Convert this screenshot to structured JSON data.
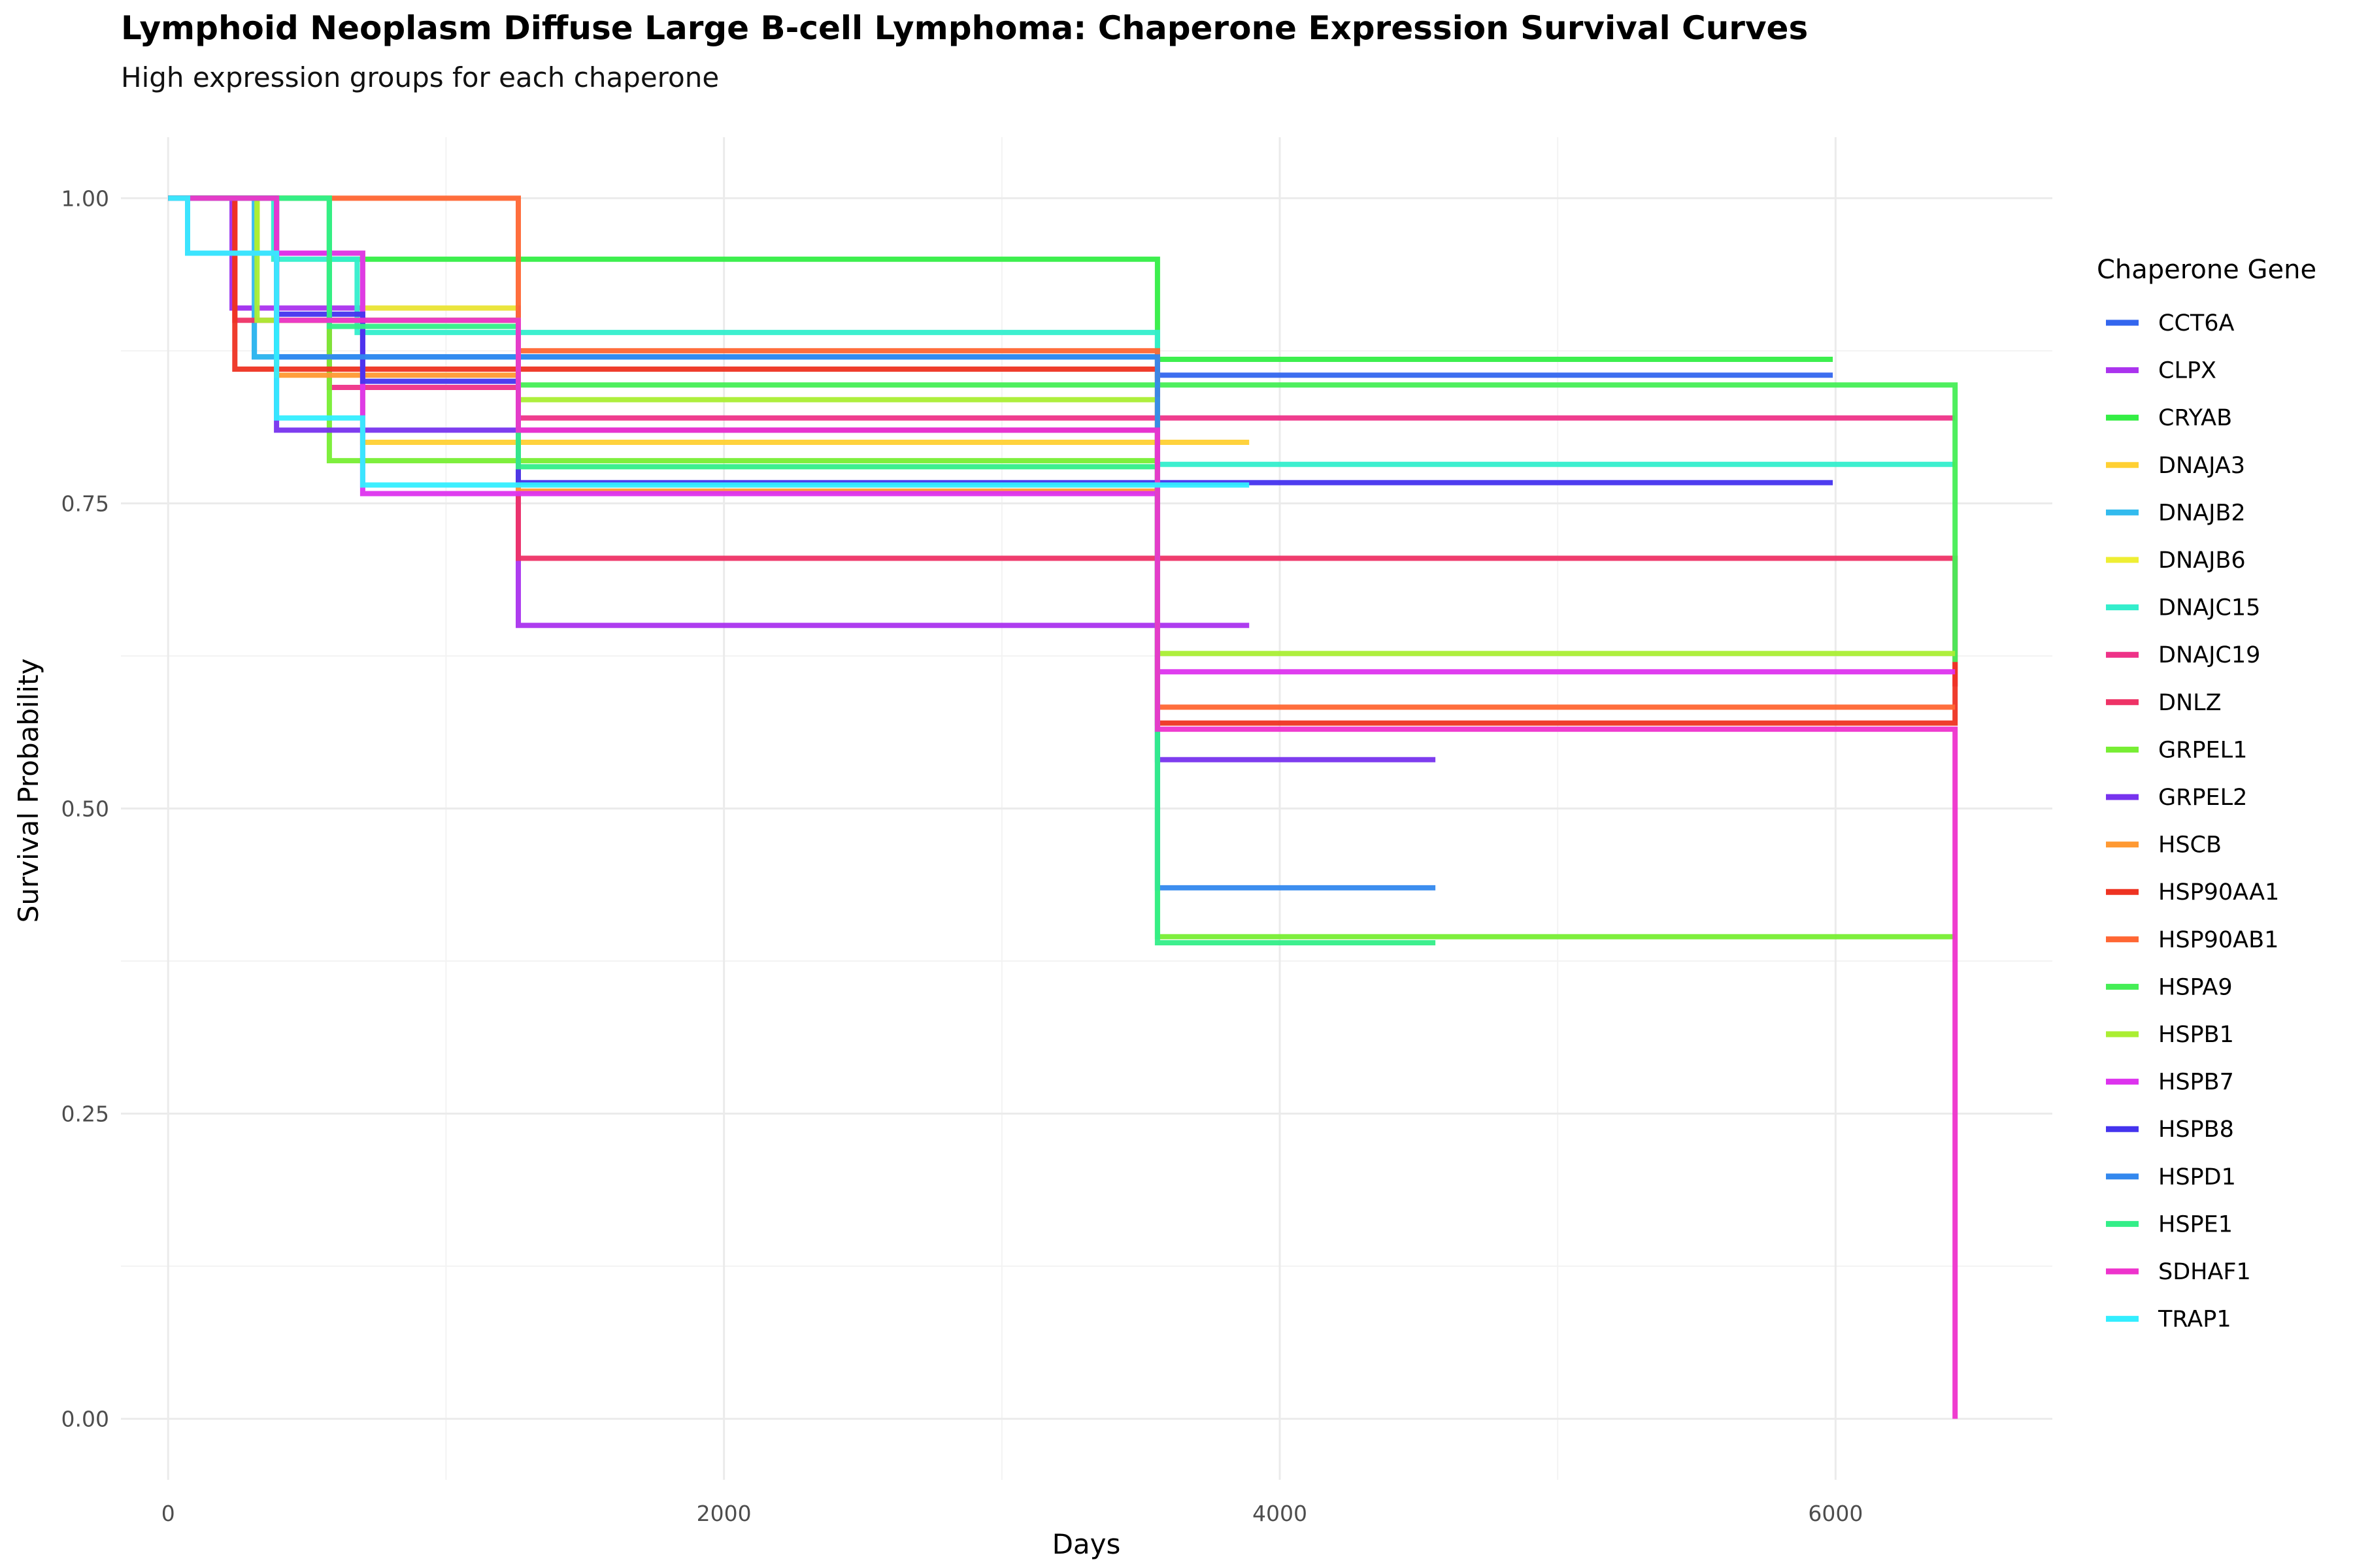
{
  "chart_data": {
    "type": "line",
    "title": "Lymphoid Neoplasm Diffuse Large B-cell Lymphoma: Chaperone Expression Survival Curves",
    "subtitle": "High expression groups for each chaperone",
    "xlabel": "Days",
    "ylabel": "Survival Probability",
    "legend_title": "Chaperone Gene",
    "legend_position": "right",
    "xlim": [
      -170,
      6780
    ],
    "ylim": [
      -0.05,
      1.05
    ],
    "x_ticks": [
      0,
      2000,
      4000,
      6000
    ],
    "x_tick_labels": [
      "0",
      "2000",
      "4000",
      "6000"
    ],
    "y_ticks": [
      0,
      0.25,
      0.5,
      0.75,
      1
    ],
    "y_tick_labels": [
      "0.00",
      "0.25",
      "0.50",
      "0.75",
      "1.00"
    ],
    "grid": true,
    "series": [
      {
        "name": "CCT6A",
        "color": "#3366ee",
        "x": [
          0,
          230,
          310,
          3560,
          5990
        ],
        "y": [
          1,
          0.91,
          0.87,
          0.855,
          0.855
        ]
      },
      {
        "name": "CLPX",
        "color": "#aa33ee",
        "x": [
          0,
          230,
          1260,
          3890
        ],
        "y": [
          1,
          0.91,
          0.65,
          0.65
        ]
      },
      {
        "name": "CRYAB",
        "color": "#33ee44",
        "x": [
          0,
          580,
          3560,
          5990
        ],
        "y": [
          1,
          0.95,
          0.868,
          0.868
        ]
      },
      {
        "name": "DNAJA3",
        "color": "#ffd033",
        "x": [
          0,
          320,
          700,
          1260,
          3890
        ],
        "y": [
          1,
          0.955,
          0.8,
          0.8,
          0.8
        ]
      },
      {
        "name": "DNAJB2",
        "color": "#33bbee",
        "x": [
          0,
          310,
          3560
        ],
        "y": [
          1,
          0.87,
          0.87
        ]
      },
      {
        "name": "DNAJB6",
        "color": "#eeee33",
        "x": [
          0,
          320,
          700,
          1260
        ],
        "y": [
          1,
          0.955,
          0.91,
          0.91
        ]
      },
      {
        "name": "DNAJC15",
        "color": "#33eecc",
        "x": [
          0,
          380,
          680,
          3560,
          6430
        ],
        "y": [
          1,
          0.95,
          0.89,
          0.782,
          0.782
        ]
      },
      {
        "name": "DNAJC19",
        "color": "#ee3388",
        "x": [
          0,
          70,
          580,
          1260,
          6430
        ],
        "y": [
          1,
          0.955,
          0.845,
          0.82,
          0.82
        ]
      },
      {
        "name": "DNLZ",
        "color": "#ee3366",
        "x": [
          0,
          240,
          1260,
          6430,
          6430
        ],
        "y": [
          1,
          0.9,
          0.705,
          0.705,
          0.6
        ]
      },
      {
        "name": "GRPEL1",
        "color": "#77ee33",
        "x": [
          0,
          580,
          3560,
          6430
        ],
        "y": [
          1,
          0.785,
          0.395,
          0.395
        ]
      },
      {
        "name": "GRPEL2",
        "color": "#7733ee",
        "x": [
          0,
          390,
          3560,
          4560
        ],
        "y": [
          1,
          0.81,
          0.54,
          0.54
        ]
      },
      {
        "name": "HSCB",
        "color": "#ff9933",
        "x": [
          0,
          390,
          1260,
          3560
        ],
        "y": [
          1,
          0.855,
          0.76,
          0.76
        ]
      },
      {
        "name": "HSP90AA1",
        "color": "#ee3322",
        "x": [
          0,
          240,
          3560,
          6430,
          6430
        ],
        "y": [
          1,
          0.86,
          0.57,
          0.57,
          0.62
        ]
      },
      {
        "name": "HSP90AB1",
        "color": "#ff6633",
        "x": [
          0,
          1260,
          3560,
          6430
        ],
        "y": [
          1,
          0.875,
          0.583,
          0.583
        ]
      },
      {
        "name": "HSPA9",
        "color": "#44ee55",
        "x": [
          0,
          580,
          1260,
          3560,
          6430,
          6430
        ],
        "y": [
          1,
          0.9,
          0.847,
          0.847,
          0.847,
          0.62
        ]
      },
      {
        "name": "HSPB1",
        "color": "#aaee33",
        "x": [
          0,
          320,
          1260,
          3560,
          6430
        ],
        "y": [
          1,
          0.9,
          0.835,
          0.627,
          0.627
        ]
      },
      {
        "name": "HSPB7",
        "color": "#dd33ee",
        "x": [
          0,
          70,
          700,
          3560,
          6430
        ],
        "y": [
          1,
          0.955,
          0.758,
          0.612,
          0.612
        ]
      },
      {
        "name": "HSPB8",
        "color": "#4433ee",
        "x": [
          0,
          390,
          700,
          1260,
          5990
        ],
        "y": [
          1,
          0.905,
          0.85,
          0.767,
          0.767
        ]
      },
      {
        "name": "HSPD1",
        "color": "#3388ee",
        "x": [
          0,
          390,
          3560,
          4560
        ],
        "y": [
          1,
          0.87,
          0.435,
          0.435
        ]
      },
      {
        "name": "HSPE1",
        "color": "#33ee88",
        "x": [
          0,
          580,
          1260,
          3560,
          4560
        ],
        "y": [
          1,
          0.895,
          0.78,
          0.39,
          0.39
        ]
      },
      {
        "name": "SDHAF1",
        "color": "#ee33cc",
        "x": [
          0,
          390,
          1260,
          3560,
          5990,
          6430,
          6430
        ],
        "y": [
          1,
          0.9,
          0.81,
          0.565,
          0.565,
          0.565,
          0
        ]
      },
      {
        "name": "TRAP1",
        "color": "#33eeff",
        "x": [
          0,
          70,
          390,
          700,
          3890
        ],
        "y": [
          1,
          0.955,
          0.82,
          0.765,
          0.765
        ]
      }
    ]
  }
}
